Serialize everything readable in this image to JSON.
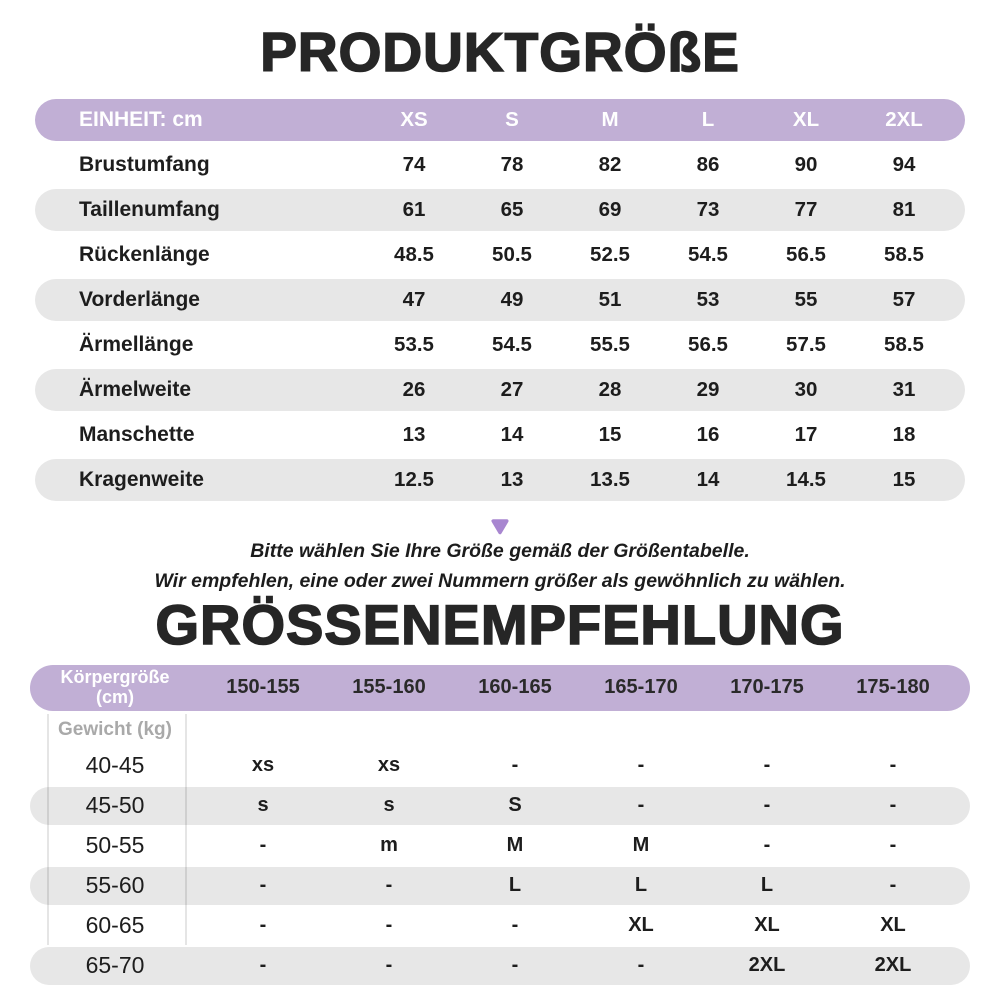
{
  "titles": {
    "product_size": "PRODUKTGRÖßE",
    "recommendation": "GRÖSSENEMPFEHLUNG"
  },
  "note": {
    "line1": "Bitte wählen Sie Ihre Größe gemäß der Größentabelle.",
    "line2": "Wir empfehlen, eine oder zwei Nummern größer als gewöhnlich zu wählen."
  },
  "size_table": {
    "unit_label": "EINHEIT: cm",
    "columns": [
      "XS",
      "S",
      "M",
      "L",
      "XL",
      "2XL"
    ],
    "rows": [
      {
        "label": "Brustumfang",
        "values": [
          "74",
          "78",
          "82",
          "86",
          "90",
          "94"
        ]
      },
      {
        "label": "Taillenumfang",
        "values": [
          "61",
          "65",
          "69",
          "73",
          "77",
          "81"
        ]
      },
      {
        "label": "Rückenlänge",
        "values": [
          "48.5",
          "50.5",
          "52.5",
          "54.5",
          "56.5",
          "58.5"
        ]
      },
      {
        "label": "Vorderlänge",
        "values": [
          "47",
          "49",
          "51",
          "53",
          "55",
          "57"
        ]
      },
      {
        "label": "Ärmellänge",
        "values": [
          "53.5",
          "54.5",
          "55.5",
          "56.5",
          "57.5",
          "58.5"
        ]
      },
      {
        "label": "Ärmelweite",
        "values": [
          "26",
          "27",
          "28",
          "29",
          "30",
          "31"
        ]
      },
      {
        "label": "Manschette",
        "values": [
          "13",
          "14",
          "15",
          "16",
          "17",
          "18"
        ]
      },
      {
        "label": "Kragenweite",
        "values": [
          "12.5",
          "13",
          "13.5",
          "14",
          "14.5",
          "15"
        ]
      }
    ]
  },
  "recommendation_table": {
    "height_label_line1": "Körpergröße",
    "height_label_line2": "(cm)",
    "columns": [
      "150-155",
      "155-160",
      "160-165",
      "165-170",
      "170-175",
      "175-180"
    ],
    "weight_label": "Gewicht (kg)",
    "rows": [
      {
        "label": "40-45",
        "values": [
          "xs",
          "xs",
          "-",
          "-",
          "-",
          "-"
        ]
      },
      {
        "label": "45-50",
        "values": [
          "s",
          "s",
          "S",
          "-",
          "-",
          "-"
        ]
      },
      {
        "label": "50-55",
        "values": [
          "-",
          "m",
          "M",
          "M",
          "-",
          "-"
        ]
      },
      {
        "label": "55-60",
        "values": [
          "-",
          "-",
          "L",
          "L",
          "L",
          "-"
        ]
      },
      {
        "label": "60-65",
        "values": [
          "-",
          "-",
          "-",
          "XL",
          "XL",
          "XL"
        ]
      },
      {
        "label": "65-70",
        "values": [
          "-",
          "-",
          "-",
          "-",
          "2XL",
          "2XL"
        ]
      }
    ]
  },
  "colors": {
    "header_purple": "#c1afd5",
    "row_gray": "#e7e7e7",
    "text_dark": "#1d1d1d",
    "header_text_dark": "#2a2a2a",
    "weight_label_gray": "#a9a9a9",
    "arrow_purple": "#a886d0"
  }
}
